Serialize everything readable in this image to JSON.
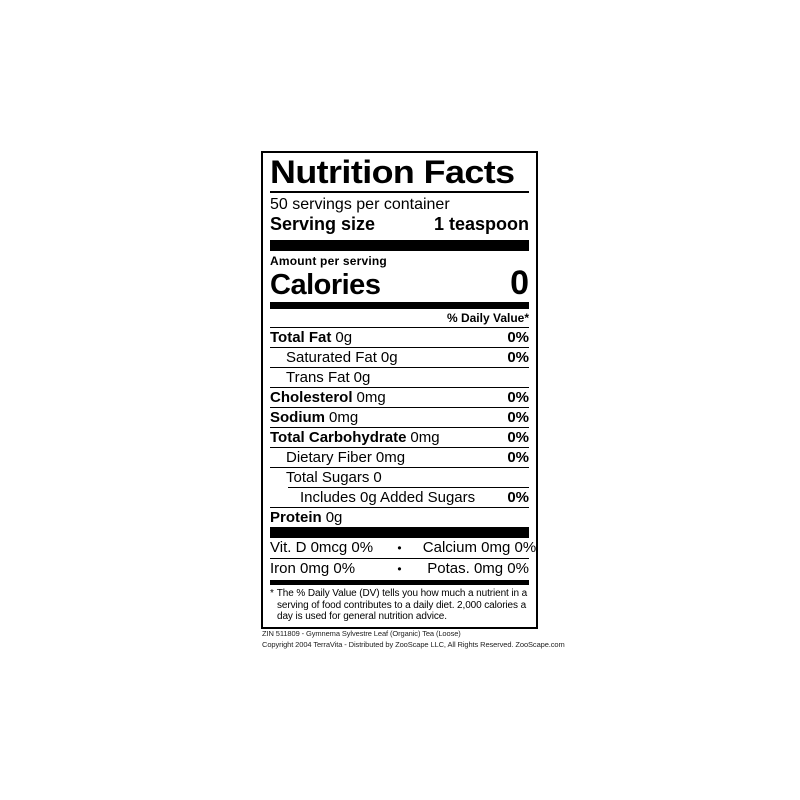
{
  "colors": {
    "ink": "#000000",
    "background": "#ffffff"
  },
  "label": {
    "title": "Nutrition Facts",
    "servings_per_container": "50 servings per container",
    "serving_size": {
      "label": "Serving size",
      "value": "1 teaspoon"
    },
    "amount_per_serving": "Amount per serving",
    "calories": {
      "label": "Calories",
      "value": "0"
    },
    "daily_value_header": "% Daily Value*",
    "nutrients": [
      {
        "name": "Total Fat",
        "amount": "0g",
        "dv": "0%"
      },
      {
        "name": "Saturated Fat",
        "amount": "0g",
        "dv": "0%"
      },
      {
        "name": "Trans Fat",
        "amount": "0g",
        "dv": ""
      },
      {
        "name": "Cholesterol",
        "amount": "0mg",
        "dv": "0%"
      },
      {
        "name": "Sodium",
        "amount": "0mg",
        "dv": "0%"
      },
      {
        "name": "Total Carbohydrate",
        "amount": "0mg",
        "dv": "0%"
      },
      {
        "name": "Dietary Fiber",
        "amount": "0mg",
        "dv": "0%"
      },
      {
        "name": "Total Sugars",
        "amount": "0",
        "dv": ""
      },
      {
        "name": "Includes 0g Added Sugars",
        "amount": "",
        "dv": "0%"
      },
      {
        "name": "Protein",
        "amount": "0g",
        "dv": ""
      }
    ],
    "micronutrients": {
      "bullet": "•",
      "rows": [
        {
          "left": "Vit. D 0mcg 0%",
          "right": "Calcium 0mg 0%"
        },
        {
          "left": "Iron 0mg 0%",
          "right": "Potas. 0mg 0%"
        }
      ]
    },
    "footnote": {
      "marker": "*",
      "text": "The % Daily Value (DV) tells you how much a nutrient in a serving of food contributes to a daily diet. 2,000 calories a day is used for general nutrition advice."
    }
  },
  "footer": {
    "line1": "ZIN 511809 - Gymnema Sylvestre Leaf (Organic) Tea (Loose)",
    "line2": "Copyright 2004 TerraVita - Distributed by ZooScape LLC, All Rights Reserved. ZooScape.com"
  }
}
